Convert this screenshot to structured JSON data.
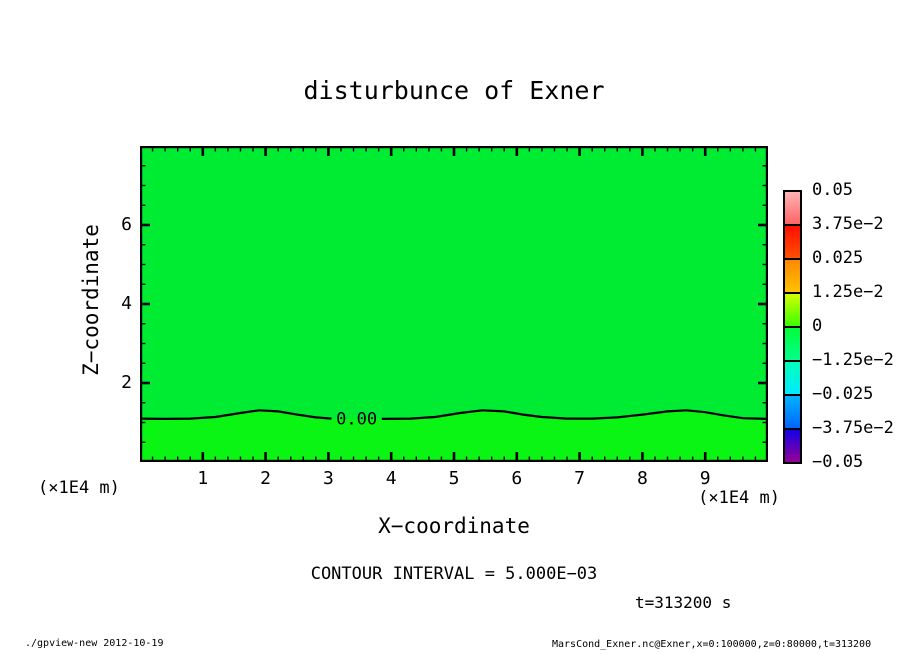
{
  "title": "disturbunce of Exner",
  "plot": {
    "x_axis": {
      "label": "X−coordinate",
      "unit": "(×1E4 m)",
      "min": 0,
      "max": 10,
      "major_step": 1,
      "minor_step": 0.2,
      "tick_labels": [
        "1",
        "2",
        "3",
        "4",
        "5",
        "6",
        "7",
        "8",
        "9"
      ]
    },
    "z_axis": {
      "label": "Z−coordinate",
      "unit": "(×1E4 m)",
      "min": 0,
      "max": 8,
      "major_step": 2,
      "minor_step": 0.5,
      "tick_labels": [
        "2",
        "4",
        "6"
      ]
    },
    "fill_above_color": "#00ec33",
    "fill_below_color": "#0bf515",
    "contour_label": "0.00"
  },
  "colorbar": {
    "labels": [
      "0.05",
      "3.75e−2",
      "0.025",
      "1.25e−2",
      "0",
      "−1.25e−2",
      "−0.025",
      "−3.75e−2",
      "−0.05"
    ],
    "boxes": [
      {
        "from": "#ffb4b4",
        "to": "#ff6464"
      },
      {
        "from": "#ff0f00",
        "to": "#ff5000"
      },
      {
        "from": "#ff8700",
        "to": "#ffc300"
      },
      {
        "from": "#d2ff00",
        "to": "#3cff00"
      },
      {
        "from": "#00ff37",
        "to": "#00ff8c"
      },
      {
        "from": "#00ffb9",
        "to": "#00ebff"
      },
      {
        "from": "#00b4ff",
        "to": "#0064ff"
      },
      {
        "from": "#1400e6",
        "to": "#960096"
      }
    ]
  },
  "captions": {
    "contour_interval": "CONTOUR INTERVAL = 5.000E−03",
    "time": "t=313200 s"
  },
  "footer": {
    "left": "./gpview-new  2012-10-19",
    "right": "MarsCond_Exner.nc@Exner,x=0:100000,z=0:80000,t=313200"
  },
  "chart_data": {
    "type": "contour",
    "title": "disturbunce of Exner",
    "xlabel": "X−coordinate (×1E4 m)",
    "ylabel": "Z−coordinate (×1E4 m)",
    "xlim": [
      0,
      10
    ],
    "ylim": [
      0,
      8
    ],
    "contour_interval": 0.005,
    "colorbar_levels": [
      0.05,
      0.0375,
      0.025,
      0.0125,
      0,
      -0.0125,
      -0.025,
      -0.0375,
      -0.05
    ],
    "zero_contour": {
      "label": "0.00",
      "label_position": {
        "x": 3.45,
        "z": 1.1
      },
      "segments": [
        [
          [
            0,
            1.1
          ],
          [
            0.4,
            1.09
          ],
          [
            0.8,
            1.1
          ],
          [
            1.2,
            1.14
          ],
          [
            1.6,
            1.24
          ],
          [
            1.9,
            1.31
          ],
          [
            2.2,
            1.28
          ],
          [
            2.5,
            1.2
          ],
          [
            2.8,
            1.13
          ],
          [
            3.05,
            1.1
          ]
        ],
        [
          [
            3.85,
            1.09
          ],
          [
            4.3,
            1.1
          ],
          [
            4.7,
            1.14
          ],
          [
            5.1,
            1.24
          ],
          [
            5.45,
            1.31
          ],
          [
            5.8,
            1.28
          ],
          [
            6.1,
            1.2
          ],
          [
            6.4,
            1.14
          ],
          [
            6.8,
            1.1
          ],
          [
            7.2,
            1.1
          ],
          [
            7.6,
            1.13
          ],
          [
            8.0,
            1.2
          ],
          [
            8.4,
            1.28
          ],
          [
            8.7,
            1.31
          ],
          [
            9.0,
            1.26
          ],
          [
            9.3,
            1.18
          ],
          [
            9.6,
            1.11
          ],
          [
            10,
            1.09
          ]
        ]
      ]
    },
    "notes": "Field is ~0 everywhere; region above zero-contour filled with tone for values just below 0, region below filled with tone for values just above 0."
  }
}
